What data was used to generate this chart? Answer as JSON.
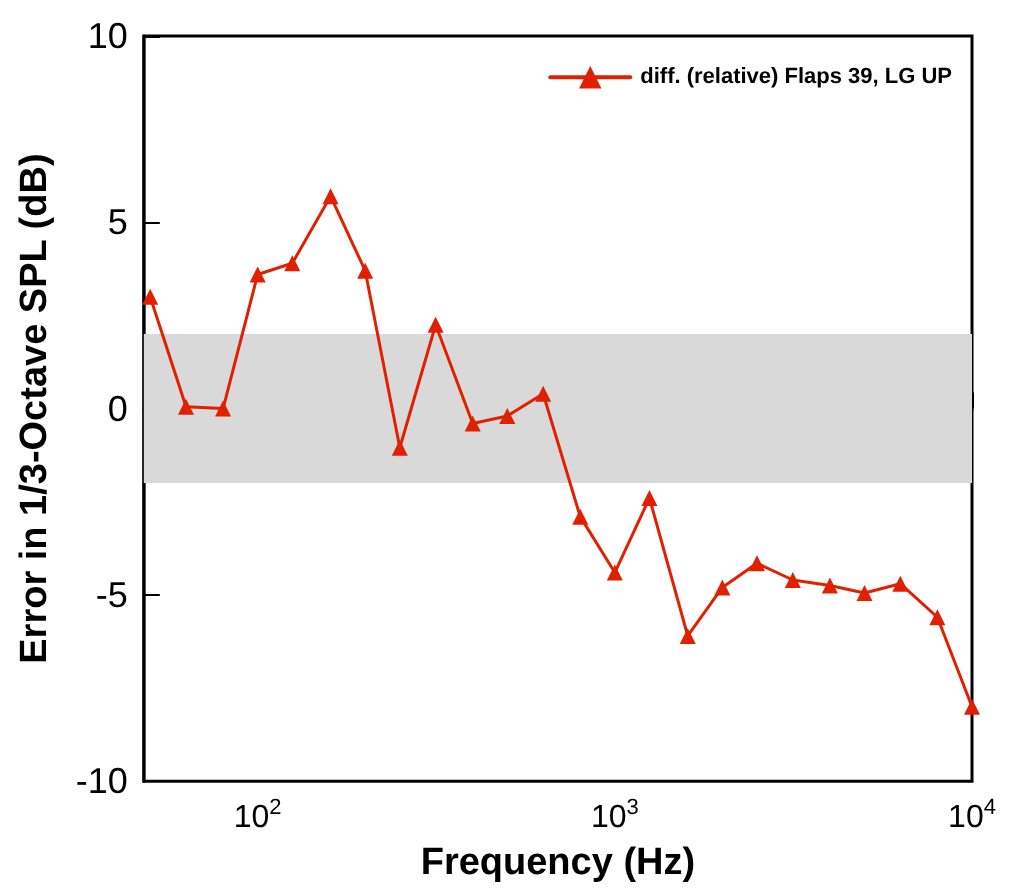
{
  "chart_data": {
    "type": "line",
    "xlabel": "Frequency (Hz)",
    "ylabel": "Error in 1/3-Octave SPL (dB)",
    "x": [
      50,
      63,
      80,
      100,
      125,
      160,
      200,
      250,
      315,
      400,
      500,
      630,
      800,
      1000,
      1250,
      1600,
      2000,
      2500,
      3150,
      4000,
      5000,
      6300,
      8000,
      10000
    ],
    "series": [
      {
        "name": "diff. (relative) Flaps 39, LG UP",
        "color": "#e02000",
        "values": [
          3.0,
          0.05,
          0,
          3.6,
          3.9,
          5.7,
          3.7,
          -1.05,
          2.25,
          -0.4,
          -0.2,
          0.4,
          -2.9,
          -4.4,
          -2.4,
          -6.1,
          -4.8,
          -4.15,
          -4.6,
          -4.75,
          -4.95,
          -4.7,
          -5.6,
          -8.0
        ]
      }
    ],
    "log": "x",
    "xlim": [
      48,
      10000
    ],
    "xticks": [
      {
        "value": 100,
        "label": "10$^{2}$"
      },
      {
        "value": 1000,
        "label": "10$^{3}$"
      },
      {
        "value": 10000,
        "label": "10$^{4}$"
      }
    ],
    "ylim": [
      -10,
      10
    ],
    "yticks": [
      -10,
      -5,
      0,
      5,
      10
    ],
    "bands": [
      {
        "axis": "y",
        "from": -2,
        "to": 2,
        "color": "#d9d9d9"
      }
    ],
    "legend": "top right",
    "marker": "triangle",
    "line_style": "solid"
  }
}
